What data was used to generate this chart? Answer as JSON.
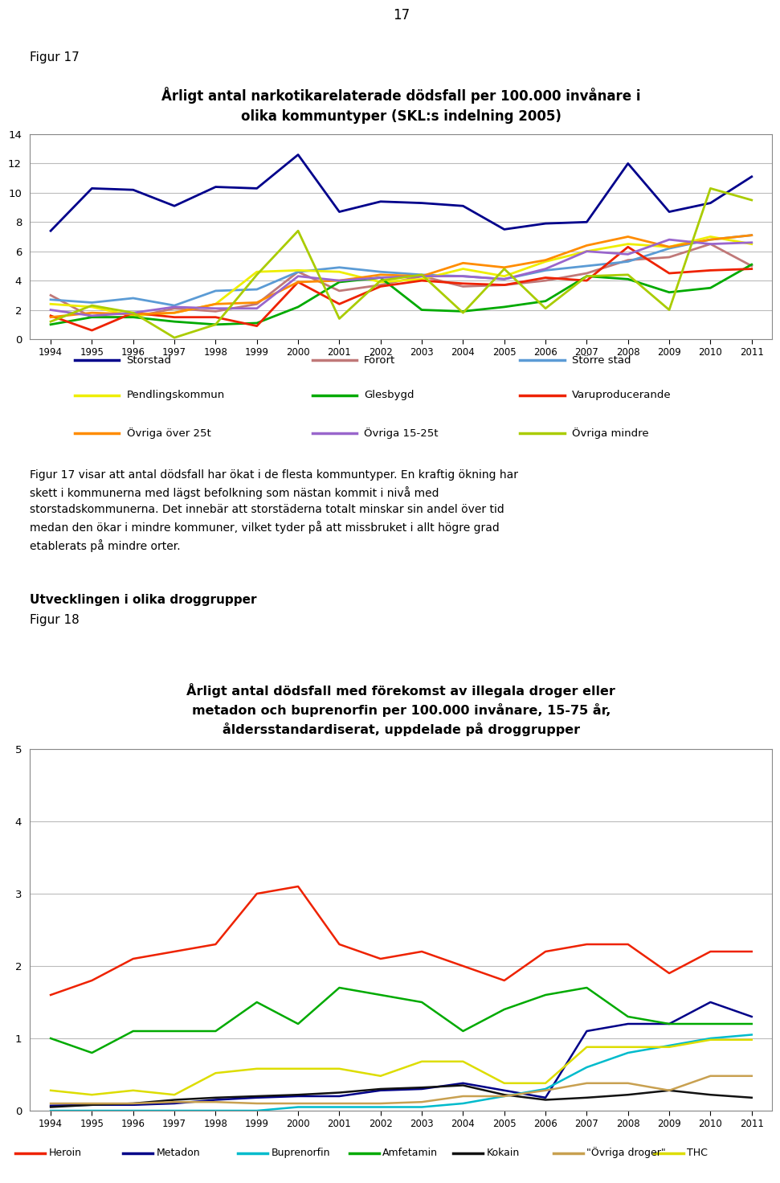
{
  "years": [
    1994,
    1995,
    1996,
    1997,
    1998,
    1999,
    2000,
    2001,
    2002,
    2003,
    2004,
    2005,
    2006,
    2007,
    2008,
    2009,
    2010,
    2011
  ],
  "fig17_title": "Årligt antal narkotikarelaterade dödsfall per 100.000 invånare i\nolika kommuntyper (SKL:s indelning 2005)",
  "fig17_ylim": [
    0,
    14
  ],
  "fig17_yticks": [
    0,
    2,
    4,
    6,
    8,
    10,
    12,
    14
  ],
  "fig17_series": {
    "Storstad": [
      7.4,
      10.3,
      10.2,
      9.1,
      10.4,
      10.3,
      12.6,
      8.7,
      9.4,
      9.3,
      9.1,
      7.5,
      7.9,
      8.0,
      12.0,
      8.7,
      9.3,
      11.1
    ],
    "Forort": [
      3.0,
      1.5,
      1.5,
      2.1,
      1.9,
      2.4,
      4.6,
      3.3,
      3.7,
      4.3,
      3.6,
      3.7,
      4.0,
      4.5,
      5.4,
      5.6,
      6.5,
      5.0
    ],
    "Storre_stad": [
      2.7,
      2.5,
      2.8,
      2.3,
      3.3,
      3.4,
      4.6,
      4.9,
      4.6,
      4.4,
      4.3,
      4.1,
      4.7,
      5.0,
      5.3,
      6.2,
      6.8,
      7.1
    ],
    "Pendlingskommun": [
      2.4,
      2.2,
      1.6,
      1.8,
      2.4,
      4.6,
      4.7,
      4.6,
      3.9,
      4.1,
      4.8,
      4.3,
      5.3,
      6.0,
      6.5,
      6.3,
      7.0,
      6.5
    ],
    "Glesbygd": [
      1.0,
      1.5,
      1.5,
      1.2,
      1.0,
      1.1,
      2.2,
      3.9,
      4.2,
      2.0,
      1.9,
      2.2,
      2.6,
      4.3,
      4.1,
      3.2,
      3.5,
      5.1
    ],
    "Varuproducerande": [
      1.6,
      0.6,
      1.8,
      1.5,
      1.5,
      0.9,
      3.9,
      2.4,
      3.6,
      4.0,
      3.8,
      3.7,
      4.2,
      4.0,
      6.3,
      4.5,
      4.7,
      4.8
    ],
    "Ovriga_over_25t": [
      1.5,
      1.8,
      1.7,
      1.8,
      2.4,
      2.5,
      3.9,
      4.0,
      4.4,
      4.3,
      5.2,
      4.9,
      5.4,
      6.4,
      7.0,
      6.3,
      6.8,
      7.1
    ],
    "Ovriga_15_25t": [
      2.0,
      1.6,
      1.8,
      2.2,
      2.1,
      2.1,
      4.3,
      4.0,
      4.2,
      4.3,
      4.3,
      4.1,
      4.8,
      6.0,
      5.8,
      6.8,
      6.5,
      6.6
    ],
    "Ovriga_mindre": [
      1.2,
      2.3,
      1.8,
      0.1,
      1.0,
      4.4,
      7.4,
      1.4,
      4.0,
      4.4,
      1.8,
      4.8,
      2.1,
      4.3,
      4.4,
      2.0,
      10.3,
      9.5
    ]
  },
  "fig17_colors": {
    "Storstad": "#00008B",
    "Forort": "#C07878",
    "Storre_stad": "#5B9BD5",
    "Pendlingskommun": "#EEEE00",
    "Glesbygd": "#00AA00",
    "Varuproducerande": "#EE2200",
    "Ovriga_over_25t": "#FF8C00",
    "Ovriga_15_25t": "#9966CC",
    "Ovriga_mindre": "#AACC00"
  },
  "fig17_labels": {
    "Storstad": "Storstad",
    "Forort": "Förort",
    "Storre_stad": "Större stad",
    "Pendlingskommun": "Pendlingskommun",
    "Glesbygd": "Glesbygd",
    "Varuproducerande": "Varuproducerande",
    "Ovriga_over_25t": "Övriga över 25t",
    "Ovriga_15_25t": "Övriga 15-25t",
    "Ovriga_mindre": "Övriga mindre"
  },
  "fig18_title": "Årligt antal dödsfall med förekomst av illegala droger eller\nmetadon och buprenorfin per 100.000 invånare, 15-75 år,\nåldersstandardiserat, uppdelade på droggrupper",
  "fig18_ylim": [
    0,
    5
  ],
  "fig18_yticks": [
    0,
    1,
    2,
    3,
    4,
    5
  ],
  "fig18_series": {
    "Heroin": [
      1.6,
      1.8,
      2.1,
      2.2,
      2.3,
      3.0,
      3.1,
      2.3,
      2.1,
      2.2,
      2.0,
      1.8,
      2.2,
      2.3,
      2.3,
      1.9,
      2.2,
      2.2
    ],
    "Metadon": [
      0.07,
      0.08,
      0.08,
      0.1,
      0.15,
      0.18,
      0.2,
      0.2,
      0.28,
      0.3,
      0.38,
      0.28,
      0.18,
      1.1,
      1.2,
      1.2,
      1.5,
      1.3
    ],
    "Buprenorfin": [
      0.0,
      0.0,
      0.0,
      0.0,
      0.0,
      0.0,
      0.05,
      0.05,
      0.05,
      0.05,
      0.1,
      0.2,
      0.3,
      0.6,
      0.8,
      0.9,
      1.0,
      1.05
    ],
    "Amfetamin": [
      1.0,
      0.8,
      1.1,
      1.1,
      1.1,
      1.5,
      1.2,
      1.7,
      1.6,
      1.5,
      1.1,
      1.4,
      1.6,
      1.7,
      1.3,
      1.2,
      1.2,
      1.2
    ],
    "Kokain": [
      0.05,
      0.08,
      0.1,
      0.15,
      0.18,
      0.2,
      0.22,
      0.25,
      0.3,
      0.32,
      0.35,
      0.22,
      0.15,
      0.18,
      0.22,
      0.28,
      0.22,
      0.18
    ],
    "Ovriga_droger": [
      0.1,
      0.1,
      0.1,
      0.12,
      0.12,
      0.1,
      0.1,
      0.1,
      0.1,
      0.12,
      0.2,
      0.2,
      0.28,
      0.38,
      0.38,
      0.28,
      0.48,
      0.48
    ],
    "THC": [
      0.28,
      0.22,
      0.28,
      0.22,
      0.52,
      0.58,
      0.58,
      0.58,
      0.48,
      0.68,
      0.68,
      0.38,
      0.38,
      0.88,
      0.88,
      0.88,
      0.98,
      0.98
    ]
  },
  "fig18_colors": {
    "Heroin": "#EE2200",
    "Metadon": "#000088",
    "Buprenorfin": "#00BBCC",
    "Amfetamin": "#00AA00",
    "Kokain": "#111111",
    "Ovriga_droger": "#C8A050",
    "THC": "#DDDD00"
  },
  "fig18_labels": {
    "Heroin": "Heroin",
    "Metadon": "Metadon",
    "Buprenorfin": "Buprenorfin",
    "Amfetamin": "Amfetamin",
    "Kokain": "Kokain",
    "Ovriga_droger": "\"Övriga droger\"",
    "THC": "THC"
  },
  "page_number": "17",
  "figur17_label": "Figur 17",
  "figur18_label": "Figur 18",
  "development_heading": "Utvecklingen i olika droggrupper",
  "body_text": "Figur 17 visar att antal dödsfall har ökat i de flesta kommuntyper. En kraftig ökning har\nskett i kommunerna med lägst befolkning som nästan kommit i nivå med\nstorstadskommunerna. Det innebär att storstäderna totalt minskar sin andel över tid\nmedan den ökar i mindre kommuner, vilket tyder på att missbruket i allt högre grad\netablerats på mindre orter."
}
